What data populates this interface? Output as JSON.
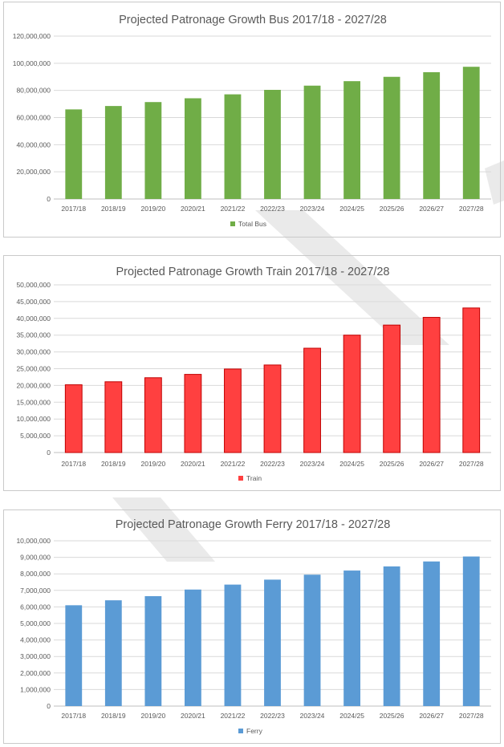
{
  "chart_data": [
    {
      "type": "bar",
      "title": "Projected Patronage Growth Bus 2017/18 - 2027/28",
      "categories": [
        "2017/18",
        "2018/19",
        "2019/20",
        "2020/21",
        "2021/22",
        "2022/23",
        "2023/24",
        "2024/25",
        "2025/26",
        "2026/27",
        "2027/28"
      ],
      "series": [
        {
          "name": "Total Bus",
          "color": "#70ad47",
          "values": [
            66000000,
            68500000,
            71400000,
            74200000,
            77100000,
            80400000,
            83500000,
            86800000,
            90000000,
            93400000,
            97400000
          ]
        }
      ],
      "ylim": [
        0,
        120000000
      ],
      "yticks": [
        "0",
        "20,000,000",
        "40,000,000",
        "60,000,000",
        "80,000,000",
        "100,000,000",
        "120,000,000"
      ],
      "ytick_values": [
        0,
        20000000,
        40000000,
        60000000,
        80000000,
        100000000,
        120000000
      ],
      "grid": true,
      "legend": "bottom"
    },
    {
      "type": "bar",
      "title": "Projected Patronage Growth Train 2017/18 - 2027/28",
      "categories": [
        "2017/18",
        "2018/19",
        "2019/20",
        "2020/21",
        "2021/22",
        "2022/23",
        "2023/24",
        "2024/25",
        "2025/26",
        "2026/27",
        "2027/28"
      ],
      "series": [
        {
          "name": "Train",
          "color": "#ff4040",
          "edge": "#c00000",
          "values": [
            20200000,
            21100000,
            22300000,
            23300000,
            24900000,
            26100000,
            31100000,
            35000000,
            38000000,
            40300000,
            43100000
          ]
        }
      ],
      "ylim": [
        0,
        50000000
      ],
      "yticks": [
        "0",
        "5,000,000",
        "10,000,000",
        "15,000,000",
        "20,000,000",
        "25,000,000",
        "30,000,000",
        "35,000,000",
        "40,000,000",
        "45,000,000",
        "50,000,000"
      ],
      "ytick_values": [
        0,
        5000000,
        10000000,
        15000000,
        20000000,
        25000000,
        30000000,
        35000000,
        40000000,
        45000000,
        50000000
      ],
      "grid": true,
      "legend": "bottom"
    },
    {
      "type": "bar",
      "title": "Projected Patronage Growth Ferry 2017/18 - 2027/28",
      "categories": [
        "2017/18",
        "2018/19",
        "2019/20",
        "2020/21",
        "2021/22",
        "2022/23",
        "2023/24",
        "2024/25",
        "2025/26",
        "2026/27",
        "2027/28"
      ],
      "series": [
        {
          "name": "Ferry",
          "color": "#5b9bd5",
          "values": [
            6100000,
            6400000,
            6650000,
            7050000,
            7350000,
            7650000,
            7950000,
            8200000,
            8450000,
            8750000,
            9050000
          ]
        }
      ],
      "ylim": [
        0,
        10000000
      ],
      "yticks": [
        "0",
        "1,000,000",
        "2,000,000",
        "3,000,000",
        "4,000,000",
        "5,000,000",
        "6,000,000",
        "7,000,000",
        "8,000,000",
        "9,000,000",
        "10,000,000"
      ],
      "ytick_values": [
        0,
        1000000,
        2000000,
        3000000,
        4000000,
        5000000,
        6000000,
        7000000,
        8000000,
        9000000,
        10000000
      ],
      "grid": true,
      "legend": "bottom"
    }
  ]
}
